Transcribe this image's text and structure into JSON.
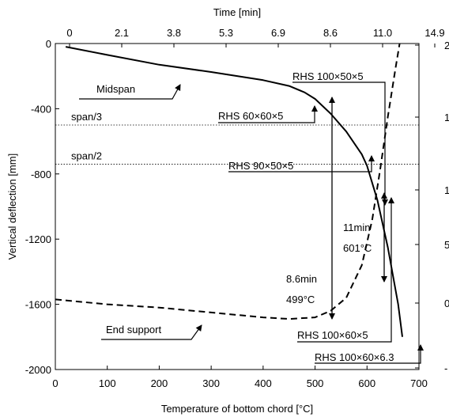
{
  "chart_data": {
    "type": "line",
    "xlabel": "Temperature of bottom chord [°C]",
    "ylabel": "Vertical deflection [mm]",
    "x2label": "Time [min]",
    "xlim": [
      0,
      700
    ],
    "ylim": [
      -2000,
      0
    ],
    "xticks": [
      0,
      100,
      200,
      300,
      400,
      500,
      600,
      700
    ],
    "yticks": [
      0,
      -400,
      -800,
      -1200,
      -1600,
      -2000
    ],
    "x_top_ticks": [
      "0",
      "2.1",
      "3.8",
      "5.3",
      "6.9",
      "8.6",
      "11.0",
      "14.9"
    ],
    "right_tick_labels": [
      "2",
      "1",
      "1",
      "5",
      "0",
      "-"
    ],
    "series": [
      {
        "name": "Midspan",
        "style": "solid",
        "x": [
          20,
          100,
          200,
          300,
          400,
          450,
          480,
          500,
          530,
          560,
          590,
          600,
          620,
          640,
          660,
          668
        ],
        "y": [
          -20,
          -70,
          -130,
          -175,
          -225,
          -260,
          -300,
          -340,
          -430,
          -540,
          -680,
          -750,
          -960,
          -1250,
          -1600,
          -1800
        ]
      },
      {
        "name": "End support",
        "style": "dashed",
        "x": [
          0,
          100,
          200,
          300,
          400,
          450,
          500,
          530,
          560,
          590,
          610,
          625,
          640,
          655,
          668,
          680,
          690
        ],
        "y": [
          -1570,
          -1600,
          -1620,
          -1650,
          -1680,
          -1690,
          -1680,
          -1640,
          -1560,
          -1360,
          -1080,
          -780,
          -450,
          -150,
          100,
          300,
          500
        ]
      }
    ],
    "reference_lines": [
      {
        "label": "span/3",
        "y": -500
      },
      {
        "label": "span/2",
        "y": -740
      }
    ],
    "annotations": {
      "midspan": "Midspan",
      "end_support": "End support",
      "rhs_100_50_5": "RHS 100×50×5",
      "rhs_60_60_5": "RHS 60×60×5",
      "rhs_90_50_5": "RHS 90×50×5",
      "rhs_100_60_5": "RHS 100×60×5",
      "rhs_100_60_63": "RHS 100×60×6.3",
      "t1_time": "8.6min",
      "t1_temp": "499°C",
      "t2_time": "11min",
      "t2_temp": "601°C"
    }
  }
}
